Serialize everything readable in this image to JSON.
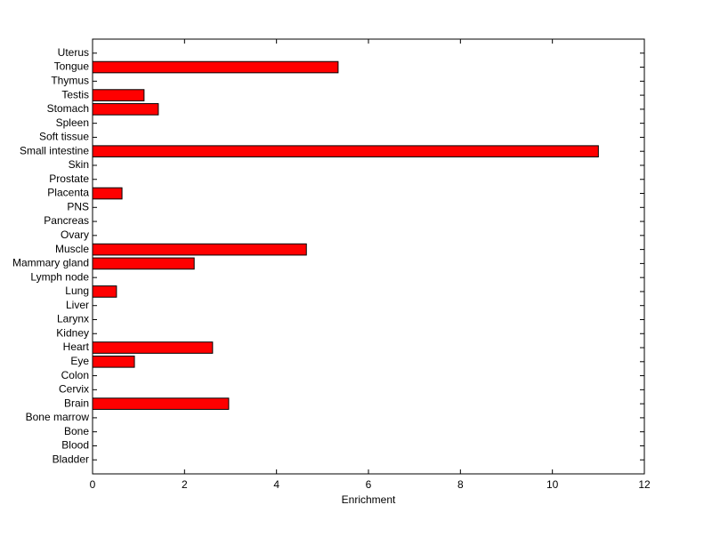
{
  "chart_data": {
    "type": "barh",
    "x_label": "Enrichment",
    "categories": [
      "Bladder",
      "Blood",
      "Bone",
      "Bone marrow",
      "Brain",
      "Cervix",
      "Colon",
      "Eye",
      "Heart",
      "Kidney",
      "Larynx",
      "Liver",
      "Lung",
      "Lymph node",
      "Mammary gland",
      "Muscle",
      "Ovary",
      "Pancreas",
      "PNS",
      "Placenta",
      "Prostate",
      "Skin",
      "Small intestine",
      "Soft tissue",
      "Spleen",
      "Stomach",
      "Testis",
      "Thymus",
      "Tongue",
      "Uterus"
    ],
    "values": [
      0,
      0,
      0,
      0,
      2.96,
      0,
      0,
      0.91,
      2.61,
      0,
      0,
      0,
      0.52,
      0,
      2.21,
      4.65,
      0,
      0,
      0,
      0.64,
      0,
      0,
      11.0,
      0,
      0,
      1.43,
      1.12,
      0,
      5.34,
      0
    ],
    "color": "#ff0000",
    "xlim": [
      0,
      12
    ],
    "xticks": [
      0,
      2,
      4,
      6,
      8,
      10,
      12
    ]
  }
}
